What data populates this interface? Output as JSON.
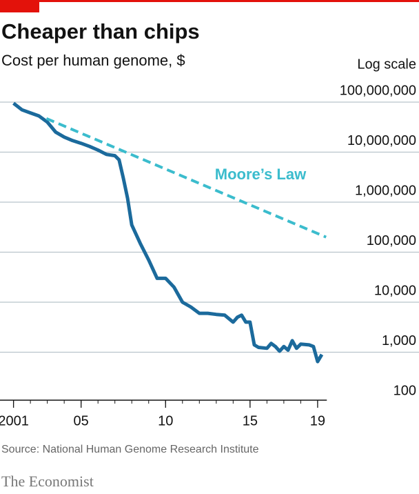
{
  "chart_data": {
    "type": "line",
    "title": "Cheaper than chips",
    "subtitle": "Cost per human genome, $",
    "scale_note": "Log scale",
    "source": "Source: National Human Genome Research Institute",
    "brand": "The Economist",
    "log_scale": true,
    "grid": true,
    "xlim": [
      2000.2,
      2025
    ],
    "xticks": [
      2001,
      {
        "value": 2005,
        "label": "05"
      },
      {
        "value": 2010,
        "label": "10"
      },
      {
        "value": 2015,
        "label": "15"
      },
      {
        "value": 2019,
        "label": "19"
      }
    ],
    "ylim": [
      100,
      100000000
    ],
    "yticks": [
      100,
      {
        "value": 1000,
        "label": "1,000"
      },
      {
        "value": 10000,
        "label": "10,000"
      },
      {
        "value": 100000,
        "label": "100,000"
      },
      {
        "value": 1000000,
        "label": "1,000,000"
      },
      {
        "value": 10000000,
        "label": "10,000,000"
      },
      {
        "value": 100000000,
        "label": "100,000,000"
      }
    ],
    "series": [
      {
        "color": "#1b6a9c",
        "x": [
          2001.0,
          2001.5,
          2002.0,
          2002.5,
          2003.0,
          2003.5,
          2004.0,
          2004.5,
          2005.0,
          2005.5,
          2006.0,
          2006.5,
          2007.0,
          2007.25,
          2007.5,
          2007.75,
          2008.0,
          2008.5,
          2009.0,
          2009.5,
          2010.0,
          2010.5,
          2011.0,
          2011.5,
          2012.0,
          2012.5,
          2013.0,
          2013.5,
          2014.0,
          2014.25,
          2014.5,
          2014.75,
          2015.0,
          2015.25,
          2015.5,
          2016.0,
          2016.25,
          2016.5,
          2016.75,
          2017.0,
          2017.25,
          2017.5,
          2017.75,
          2018.0,
          2018.5,
          2018.75,
          2019.0,
          2019.25
        ],
        "values": [
          95000000,
          70000000,
          61000000,
          53000000,
          40000000,
          25000000,
          20000000,
          17000000,
          15000000,
          13000000,
          11000000,
          9000000,
          8500000,
          7000000,
          3000000,
          1200000,
          350000,
          150000,
          70000,
          30000,
          30000,
          20000,
          10000,
          8000,
          6000,
          6000,
          5700,
          5500,
          4000,
          5000,
          5500,
          4000,
          4000,
          1400,
          1250,
          1200,
          1500,
          1300,
          1050,
          1300,
          1100,
          1700,
          1200,
          1450,
          1400,
          1300,
          650,
          900
        ]
      },
      {
        "name": "Moore’s Law",
        "color": "#3bbccd",
        "dashed": true,
        "x": [
          2002.95,
          2019.5
        ],
        "values": [
          47000000,
          200000
        ]
      }
    ]
  }
}
